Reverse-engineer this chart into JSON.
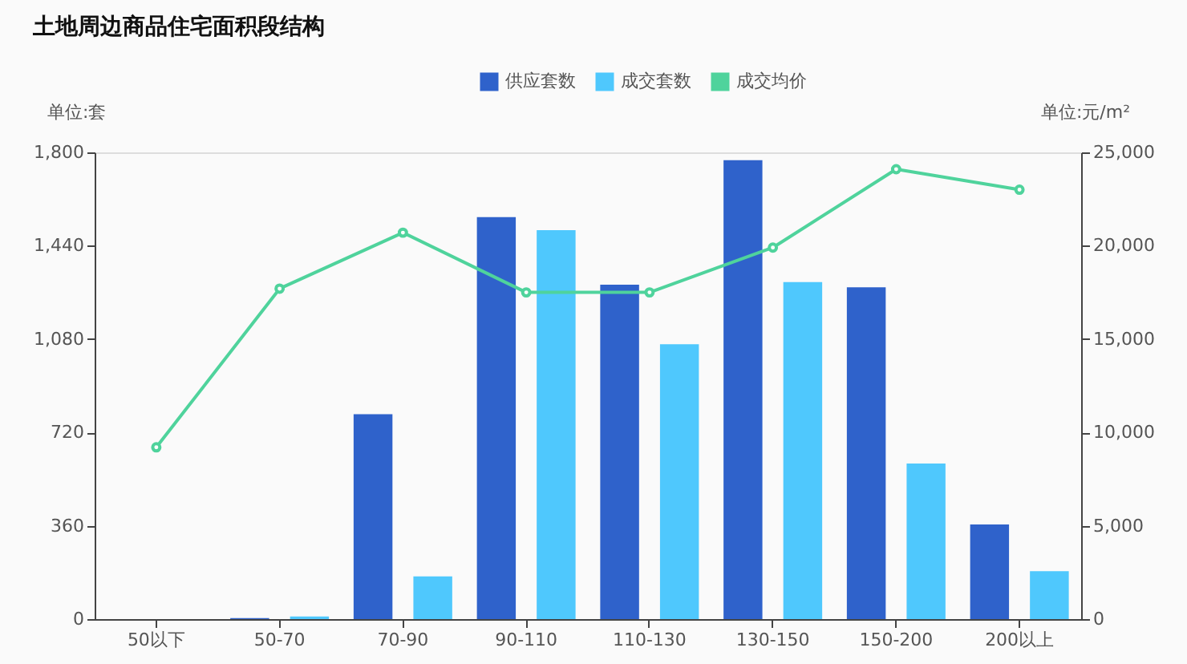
{
  "chart_data": {
    "type": "bar",
    "title": "土地周边商品住宅面积段结构",
    "categories": [
      "50以下",
      "50-70",
      "70-90",
      "90-110",
      "110-130",
      "130-150",
      "150-200",
      "200以上"
    ],
    "ylabel": "单位:套",
    "y2label": "单位:元/m²",
    "ylim": [
      0,
      1800
    ],
    "yticks": [
      0,
      360,
      720,
      {
        "value": 1080,
        "label": "1,080"
      },
      {
        "value": 1440,
        "label": "1,440"
      },
      {
        "value": 1800,
        "label": "1,800"
      }
    ],
    "y2lim": [
      0,
      25000
    ],
    "y2ticks": [
      0,
      {
        "value": 5000,
        "label": "5,000"
      },
      {
        "value": 10000,
        "label": "10,000"
      },
      {
        "value": 15000,
        "label": "15,000"
      },
      {
        "value": 20000,
        "label": "20,000"
      },
      {
        "value": 25000,
        "label": "25,000"
      }
    ],
    "legend": "top",
    "grid": false,
    "marker": "circle",
    "series": [
      {
        "name": "供应套数",
        "color": "#2f62cb",
        "values": [
          0,
          4,
          790,
          1550,
          1290,
          1770,
          1280,
          365
        ]
      },
      {
        "name": "成交套数",
        "color": "#4fc8fd",
        "values": [
          0,
          10,
          165,
          1500,
          1060,
          1300,
          600,
          185
        ]
      },
      {
        "name": "成交均价",
        "type": "line",
        "axis": "y2",
        "color": "#4fd39c",
        "values": [
          9200,
          17700,
          20700,
          17500,
          17500,
          19900,
          24100,
          23000
        ]
      }
    ]
  }
}
